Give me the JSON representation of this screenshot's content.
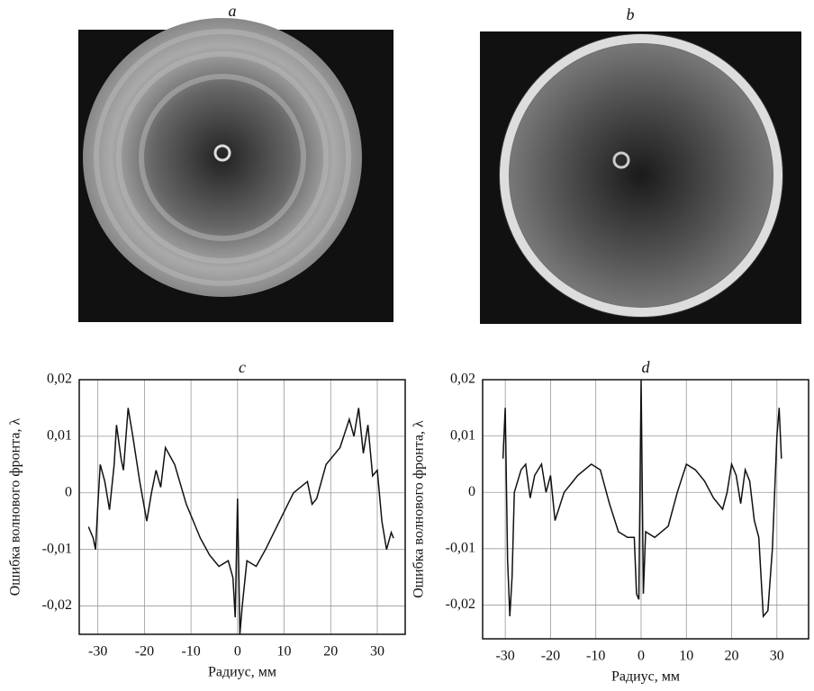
{
  "panels": [
    {
      "label": "a"
    },
    {
      "label": "b"
    }
  ],
  "chart_data": [
    {
      "type": "line",
      "title": "c",
      "x_label": "Радиус, мм",
      "y_label": "Ошибка волнового фронта, λ",
      "xlim": [
        -34,
        36
      ],
      "ylim": [
        -0.025,
        0.02
      ],
      "grid": true,
      "color": "#111111",
      "xticks": [
        -30,
        -20,
        -10,
        0,
        10,
        20,
        30
      ],
      "yticks": [
        {
          "value": -0.02,
          "label": "-0,02"
        },
        {
          "value": -0.01,
          "label": "-0,01"
        },
        0,
        {
          "value": 0.01,
          "label": "0,01"
        },
        {
          "value": 0.02,
          "label": "0,02"
        }
      ],
      "x": [
        -32,
        -31,
        -30.5,
        -30,
        -29.5,
        -28.5,
        -27.5,
        -26.5,
        -26,
        -25,
        -24.5,
        -23.5,
        -22.5,
        -21,
        -19.5,
        -18.5,
        -17.5,
        -16.5,
        -15.5,
        -13.5,
        -11,
        -8,
        -6,
        -4,
        -2,
        -1,
        -0.5,
        0,
        0.5,
        1,
        2,
        4,
        6,
        9,
        12,
        15,
        16,
        17,
        18,
        19,
        21,
        22,
        24,
        25,
        26,
        27,
        28,
        29,
        30,
        31,
        32,
        33,
        33.5
      ],
      "values": [
        -0.006,
        -0.008,
        -0.01,
        -0.002,
        0.005,
        0.002,
        -0.003,
        0.005,
        0.012,
        0.006,
        0.004,
        0.015,
        0.01,
        0.002,
        -0.005,
        0,
        0.004,
        0.001,
        0.008,
        0.005,
        -0.002,
        -0.008,
        -0.011,
        -0.013,
        -0.012,
        -0.015,
        -0.022,
        -0.001,
        -0.025,
        -0.02,
        -0.012,
        -0.013,
        -0.01,
        -0.005,
        0,
        0.002,
        -0.002,
        -0.001,
        0.002,
        0.005,
        0.007,
        0.008,
        0.013,
        0.01,
        0.015,
        0.007,
        0.012,
        0.003,
        0.004,
        -0.005,
        -0.01,
        -0.007,
        -0.008
      ]
    },
    {
      "type": "line",
      "title": "d",
      "x_label": "Радиус, мм",
      "y_label": "Ошибка волнового фронта, λ",
      "xlim": [
        -35,
        37
      ],
      "ylim": [
        -0.026,
        0.02
      ],
      "grid": true,
      "color": "#111111",
      "xticks": [
        -30,
        -20,
        -10,
        0,
        10,
        20,
        30
      ],
      "yticks": [
        {
          "value": -0.02,
          "label": "-0,02"
        },
        {
          "value": -0.01,
          "label": "-0,01"
        },
        0,
        {
          "value": 0.01,
          "label": "0,01"
        },
        {
          "value": 0.02,
          "label": "0,02"
        }
      ],
      "x": [
        -30.5,
        -30,
        -29.5,
        -29,
        -28.5,
        -28,
        -26.5,
        -25.5,
        -24.5,
        -23.5,
        -22,
        -21,
        -20,
        -19,
        -17,
        -14,
        -11,
        -9,
        -7,
        -5,
        -3,
        -1.5,
        -1,
        -0.5,
        0,
        0.5,
        1,
        3,
        6,
        8,
        10,
        12,
        14,
        16,
        18,
        19,
        20,
        21,
        22,
        23,
        24,
        25,
        26,
        27,
        28,
        29,
        30,
        30.5,
        31
      ],
      "values": [
        0.006,
        0.015,
        -0.012,
        -0.022,
        -0.015,
        0,
        0.004,
        0.005,
        -0.001,
        0.003,
        0.005,
        0,
        0.003,
        -0.005,
        0,
        0.003,
        0.005,
        0.004,
        -0.002,
        -0.007,
        -0.008,
        -0.008,
        -0.018,
        -0.019,
        0.02,
        -0.018,
        -0.007,
        -0.008,
        -0.006,
        0,
        0.005,
        0.004,
        0.002,
        -0.001,
        -0.003,
        0,
        0.005,
        0.003,
        -0.002,
        0.004,
        0.002,
        -0.005,
        -0.008,
        -0.022,
        -0.021,
        -0.01,
        0.01,
        0.015,
        0.006
      ]
    }
  ]
}
